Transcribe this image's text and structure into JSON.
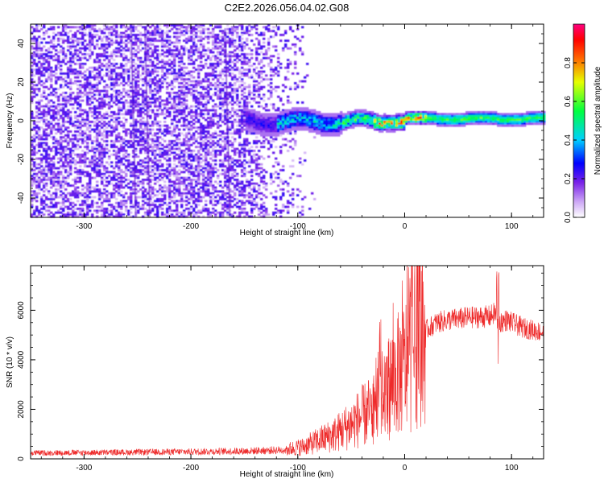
{
  "figure": {
    "title": "C2E2.2026.056.04.02.G08"
  },
  "chart_data": [
    {
      "type": "heatmap",
      "title": "C2E2.2026.056.04.02.G08",
      "xlabel": "Height of straight line (km)",
      "ylabel": "Frequency (Hz)",
      "xlim": [
        -350,
        130
      ],
      "ylim": [
        -50,
        50
      ],
      "x_ticks": [
        -300,
        -200,
        -100,
        0,
        100
      ],
      "x_tick_labels": [
        "-300",
        "-200",
        "-100",
        "0",
        "100"
      ],
      "y_ticks": [
        -40,
        -20,
        0,
        20,
        40
      ],
      "y_tick_labels": [
        "-40",
        "-20",
        "0",
        "20",
        "40"
      ],
      "colorbar": {
        "label": "Normalized spectral amplitude",
        "range": [
          0,
          1
        ],
        "ticks": [
          0.0,
          0.2,
          0.4,
          0.6,
          0.8
        ],
        "tick_labels": [
          "0.0",
          "0.2",
          "0.4",
          "0.6",
          "0.8"
        ],
        "colors": [
          "#ffffff",
          "#8a2be2",
          "#0000ff",
          "#00ffff",
          "#00ff00",
          "#ffff00",
          "#ff0000",
          "#ff0080"
        ]
      },
      "description_series": [
        {
          "name": "noise_region_extent_km",
          "values": [
            -350,
            -100
          ]
        },
        {
          "name": "signal_band_frequency_hz",
          "values": [
            0,
            2
          ]
        }
      ]
    },
    {
      "type": "line",
      "xlabel": "Height of straight line (km)",
      "ylabel": "SNR (10 * v/v)",
      "xlim": [
        -350,
        130
      ],
      "ylim": [
        0,
        7800
      ],
      "x_ticks": [
        -300,
        -200,
        -100,
        0,
        100
      ],
      "x_tick_labels": [
        "-300",
        "-200",
        "-100",
        "0",
        "100"
      ],
      "y_ticks": [
        0,
        2000,
        4000,
        6000
      ],
      "y_tick_labels": [
        "0",
        "2000",
        "4000",
        "6000"
      ],
      "line_color": "#ee2a2a",
      "series": [
        {
          "name": "SNR envelope",
          "x": [
            -350,
            -250,
            -150,
            -110,
            -95,
            -80,
            -65,
            -50,
            -40,
            -30,
            -20,
            -10,
            0,
            10,
            20,
            30,
            40,
            60,
            80,
            85,
            88,
            95,
            110,
            130
          ],
          "values": [
            250,
            280,
            330,
            380,
            500,
            750,
            1000,
            1400,
            1700,
            2000,
            2600,
            3200,
            3700,
            4600,
            5200,
            5500,
            5600,
            5700,
            5750,
            5900,
            5500,
            5600,
            5300,
            5100
          ]
        }
      ]
    }
  ]
}
